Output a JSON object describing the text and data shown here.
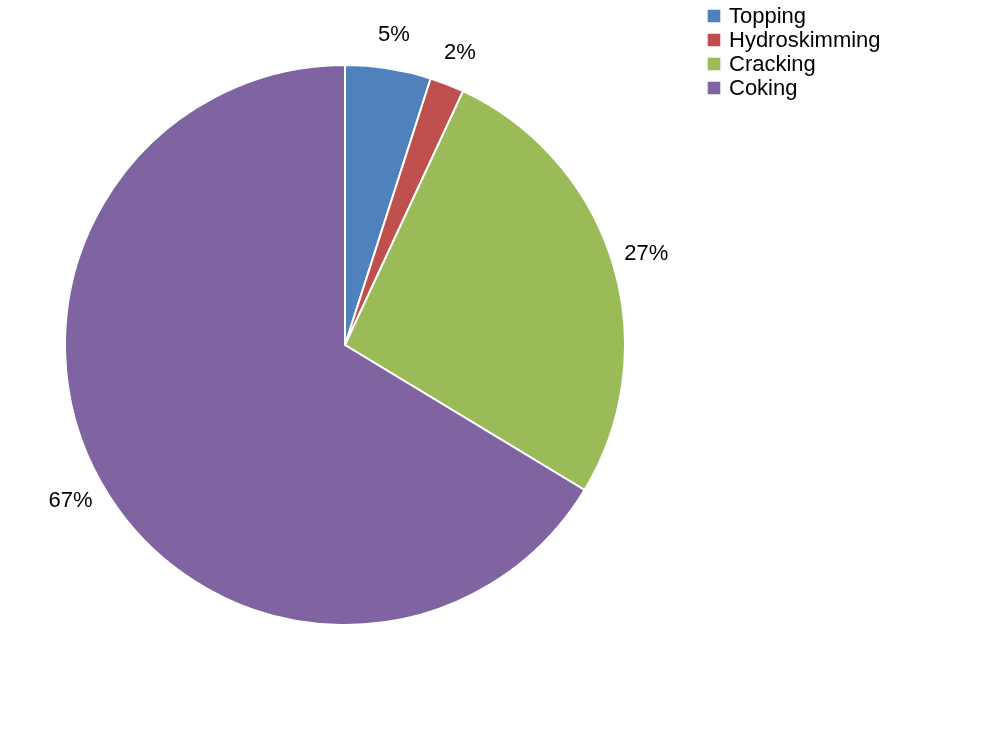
{
  "chart_data": {
    "type": "pie",
    "categories": [
      "Topping",
      "Hydroskimming",
      "Cracking",
      "Coking"
    ],
    "values": [
      5,
      2,
      27,
      67
    ],
    "colors": [
      "#4f81bd",
      "#c0504d",
      "#9bbb59",
      "#8064a2"
    ],
    "value_labels": [
      "5%",
      "2%",
      "27%",
      "67%"
    ],
    "legend": "right"
  }
}
